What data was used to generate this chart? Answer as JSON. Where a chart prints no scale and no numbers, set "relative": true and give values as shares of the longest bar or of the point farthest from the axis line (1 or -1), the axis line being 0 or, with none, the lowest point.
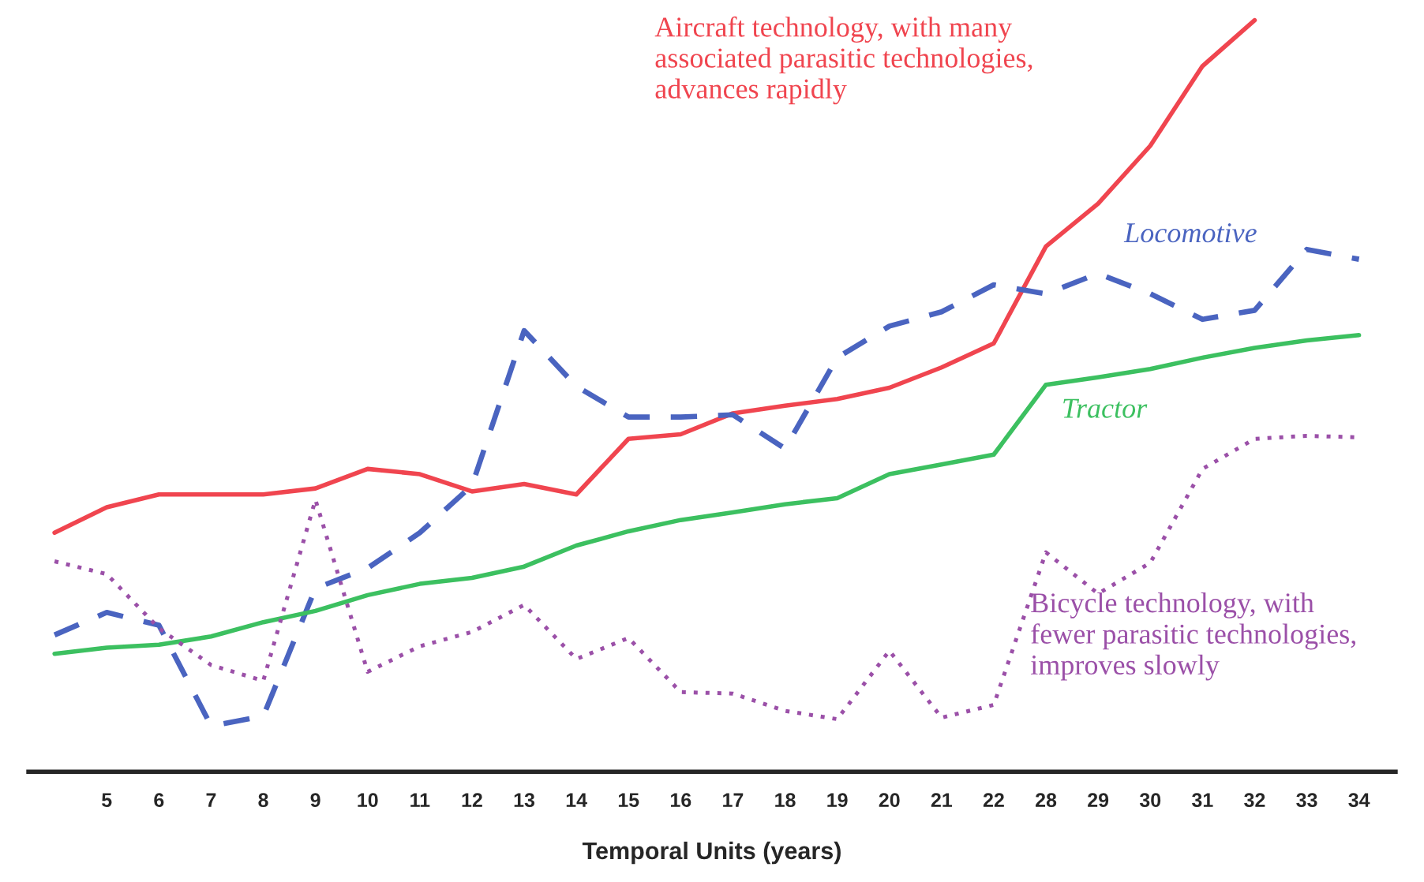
{
  "chart_data": {
    "type": "line",
    "relative": true,
    "xlabel": "Temporal Units (years)",
    "categories": [
      null,
      "5",
      "6",
      "7",
      "8",
      "9",
      "10",
      "11",
      "12",
      "13",
      "14",
      "15",
      "16",
      "17",
      "18",
      "19",
      "20",
      "21",
      "22",
      "28",
      "29",
      "30",
      "31",
      "32",
      "33",
      "34"
    ],
    "series": [
      {
        "name": "Aircraft technology, with many\nassociated parasitic technologies,\nadvances rapidly",
        "color": "#f0454f",
        "line_style": "solid",
        "values": [
          0.318,
          0.352,
          0.369,
          0.369,
          0.369,
          0.377,
          0.403,
          0.396,
          0.373,
          0.383,
          0.369,
          0.443,
          0.449,
          0.477,
          0.487,
          0.496,
          0.511,
          0.538,
          0.57,
          0.699,
          0.756,
          0.833,
          0.939,
          1.0,
          null,
          null
        ]
      },
      {
        "name": "Locomotive",
        "color": "#4a64c0",
        "line_style": "dashed",
        "values": [
          0.182,
          0.212,
          0.195,
          0.061,
          0.074,
          0.244,
          0.271,
          0.318,
          0.381,
          0.587,
          0.513,
          0.472,
          0.472,
          0.475,
          0.43,
          0.551,
          0.593,
          0.612,
          0.648,
          0.636,
          0.663,
          0.636,
          0.602,
          0.614,
          0.695,
          0.682
        ]
      },
      {
        "name": "Tractor",
        "color": "#3cc060",
        "line_style": "solid",
        "values": [
          0.157,
          0.165,
          0.169,
          0.18,
          0.199,
          0.214,
          0.235,
          0.25,
          0.258,
          0.273,
          0.301,
          0.32,
          0.335,
          0.345,
          0.356,
          0.364,
          0.396,
          0.409,
          0.422,
          0.515,
          0.525,
          0.536,
          0.551,
          0.564,
          0.574,
          0.581
        ]
      },
      {
        "name": "Bicycle technology, with\nfewer parasitic technologies,\nimproves slowly",
        "color": "#9b50a8",
        "line_style": "dotted",
        "values": [
          0.28,
          0.263,
          0.191,
          0.142,
          0.121,
          0.362,
          0.133,
          0.167,
          0.186,
          0.222,
          0.15,
          0.178,
          0.106,
          0.104,
          0.081,
          0.07,
          0.161,
          0.072,
          0.089,
          0.292,
          0.237,
          0.278,
          0.403,
          0.443,
          0.447,
          0.445
        ]
      }
    ]
  }
}
